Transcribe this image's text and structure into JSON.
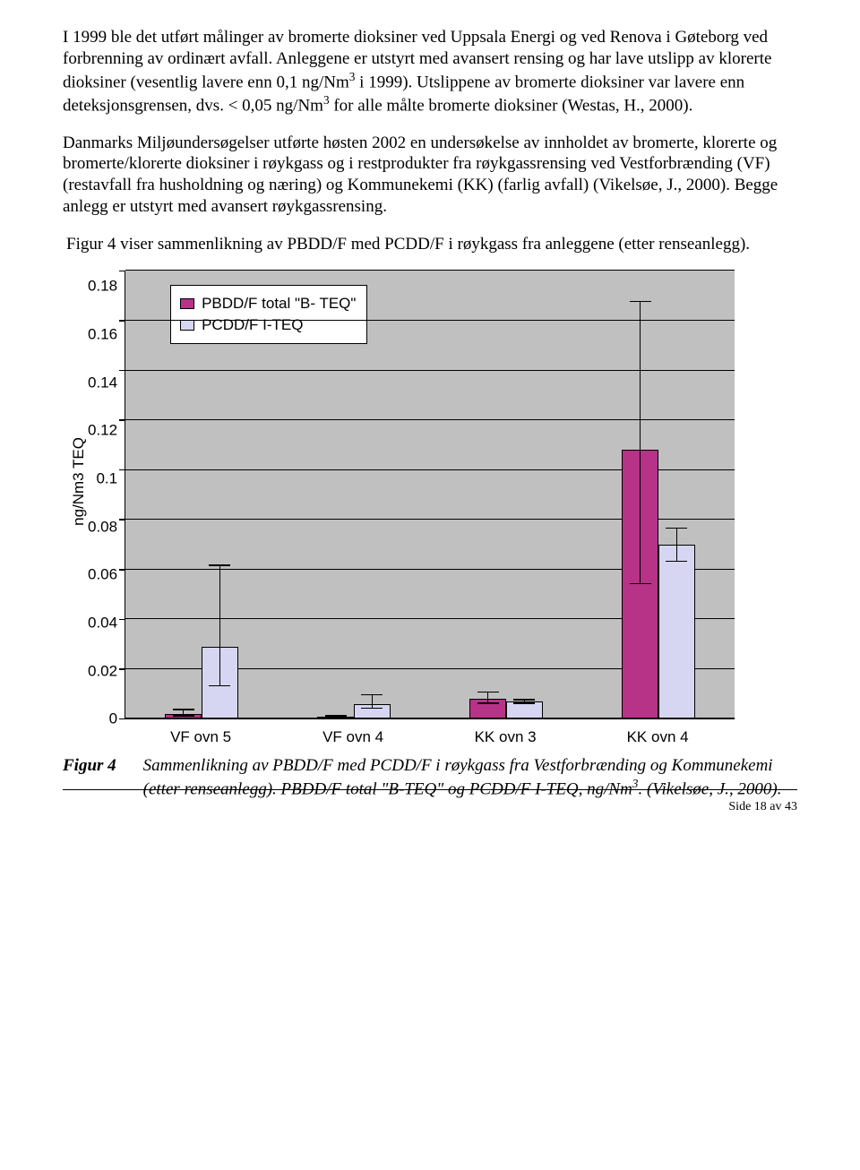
{
  "paragraphs": {
    "p1": "I 1999 ble det utført målinger av bromerte dioksiner ved Uppsala Energi og ved Renova i Gøteborg ved forbrenning av ordinært avfall. Anleggene er utstyrt med avansert rensing og har lave utslipp av klorerte dioksiner (vesentlig lavere enn 0,1 ng/Nm",
    "p1_sup": "3",
    "p1_tail": " i 1999). Utslippene av bromerte dioksiner var lavere enn deteksjonsgrensen, dvs. < 0,05 ng/Nm",
    "p1_sup2": "3",
    "p1_tail2": " for alle målte bromerte dioksiner (Westas, H., 2000).",
    "p2": "Danmarks Miljøundersøgelser utførte høsten 2002 en undersøkelse av innholdet av bromerte, klorerte og bromerte/klorerte dioksiner i røykgass og i restprodukter fra røykgassrensing ved Vestforbrænding (VF) (restavfall fra husholdning og næring) og Kommunekemi (KK) (farlig avfall) (Vikelsøe, J., 2000). Begge anlegg er utstyrt med avansert røykgassrensing.",
    "p3": " Figur 4 viser sammenlikning av PBDD/F med PCDD/F i røykgass fra anleggene (etter renseanlegg)."
  },
  "chart": {
    "type": "bar",
    "ylabel": "ng/Nm3  TEQ",
    "ylim": [
      0,
      0.18
    ],
    "ytick_step": 0.02,
    "yticks": [
      "0",
      "0.02",
      "0.04",
      "0.06",
      "0.08",
      "0.1",
      "0.12",
      "0.14",
      "0.16",
      "0.18"
    ],
    "plot_bg": "#c0c0c0",
    "grid_color": "#000000",
    "legend": {
      "items": [
        {
          "swatch": "#b63388",
          "label": "PBDD/F total \"B- TEQ\""
        },
        {
          "swatch": "#d6d6f2",
          "label": "PCDD/F I-TEQ"
        }
      ]
    },
    "categories": [
      "VF ovn 5",
      "VF ovn 4",
      "KK ovn 3",
      "KK ovn 4"
    ],
    "series": [
      {
        "name": "PBDD/F total B-TEQ",
        "color": "#b63388",
        "values": [
          0.002,
          0.001,
          0.008,
          0.108
        ],
        "err_low": [
          0.001,
          0.0005,
          0.006,
          0.054
        ],
        "err_high": [
          0.004,
          0.0015,
          0.011,
          0.168
        ]
      },
      {
        "name": "PCDD/F I-TEQ",
        "color": "#d6d6f2",
        "values": [
          0.029,
          0.006,
          0.007,
          0.07
        ],
        "err_low": [
          0.013,
          0.004,
          0.006,
          0.063
        ],
        "err_high": [
          0.062,
          0.01,
          0.008,
          0.077
        ]
      }
    ],
    "bar_width_ratio": 0.24
  },
  "figure": {
    "label": "Figur 4",
    "text_1": "Sammenlikning av PBDD/F med PCDD/F i røykgass fra Vestforbrænding og Kommunekemi (etter renseanlegg). PBDD/F total \"B-TEQ\" og PCDD/F  I-TEQ, ng/Nm",
    "sup": "3",
    "text_2": ". (Vikelsøe, J., 2000)."
  },
  "footer": {
    "page": "Side 18 av 43"
  }
}
